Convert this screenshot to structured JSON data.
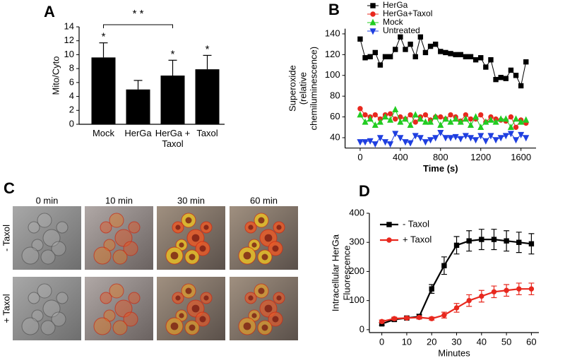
{
  "chart_data": [
    {
      "panel": "A",
      "type": "bar",
      "ylabel": "Mito/Cyto",
      "categories": [
        "Mock",
        "HerGa",
        "HerGa + Taxol",
        "Taxol"
      ],
      "values": [
        9.6,
        5.0,
        7.0,
        7.9
      ],
      "errors": [
        2.1,
        1.3,
        2.2,
        2.0
      ],
      "significance": [
        "*",
        null,
        "*",
        "*"
      ],
      "bracket": {
        "label": "* *",
        "between": [
          0,
          2
        ]
      },
      "color": "#000000",
      "ylim": [
        0,
        14
      ],
      "yticks": [
        0,
        2,
        4,
        6,
        8,
        10,
        12,
        14
      ]
    },
    {
      "panel": "B",
      "type": "line",
      "xlabel": "Time (s)",
      "ylabel": [
        "Superoxide",
        "(relative",
        "chemiluminescence)"
      ],
      "x": [
        0,
        50,
        100,
        150,
        200,
        250,
        300,
        350,
        400,
        450,
        500,
        550,
        600,
        650,
        700,
        750,
        800,
        850,
        900,
        950,
        1000,
        1050,
        1100,
        1150,
        1200,
        1250,
        1300,
        1350,
        1400,
        1450,
        1500,
        1550,
        1600,
        1650
      ],
      "series": [
        {
          "name": "HerGa",
          "color": "#000000",
          "marker": "square",
          "values": [
            135,
            117,
            118,
            122,
            110,
            118,
            118,
            125,
            137,
            125,
            130,
            118,
            137,
            122,
            128,
            130,
            123,
            122,
            121,
            120,
            120,
            118,
            118,
            115,
            117,
            108,
            115,
            96,
            98,
            97,
            105,
            100,
            90,
            113
          ]
        },
        {
          "name": "HerGa+Taxol",
          "color": "#e8281e",
          "marker": "circle",
          "values": [
            68,
            62,
            60,
            62,
            58,
            62,
            63,
            58,
            60,
            58,
            62,
            55,
            60,
            62,
            57,
            60,
            60,
            58,
            62,
            60,
            56,
            62,
            58,
            58,
            62,
            55,
            60,
            58,
            57,
            56,
            60,
            50,
            57,
            54
          ]
        },
        {
          "name": "Mock",
          "color": "#22cc22",
          "marker": "triangle",
          "values": [
            62,
            55,
            58,
            52,
            55,
            60,
            57,
            67,
            55,
            58,
            52,
            62,
            58,
            55,
            55,
            60,
            52,
            58,
            55,
            58,
            55,
            58,
            52,
            60,
            50,
            55,
            57,
            55,
            58,
            58,
            50,
            58,
            55,
            57
          ]
        },
        {
          "name": "Untreated",
          "color": "#1f3fe0",
          "marker": "triangle-down",
          "values": [
            36,
            36,
            37,
            34,
            40,
            36,
            34,
            44,
            40,
            36,
            35,
            42,
            40,
            36,
            38,
            40,
            45,
            40,
            40,
            41,
            39,
            42,
            40,
            38,
            42,
            37,
            42,
            38,
            40,
            42,
            44,
            38,
            43,
            40
          ]
        }
      ],
      "xlim": [
        -150,
        1750
      ],
      "xticks": [
        0,
        400,
        800,
        1200,
        1600
      ],
      "ylim": [
        30,
        145
      ],
      "yticks": [
        40,
        60,
        80,
        100,
        120,
        140
      ]
    },
    {
      "panel": "D",
      "type": "line",
      "xlabel": "Minutes",
      "ylabel": [
        "Intracellular HerGa",
        "Fluorescence"
      ],
      "x": [
        0,
        5,
        10,
        15,
        20,
        25,
        30,
        35,
        40,
        45,
        50,
        55,
        60
      ],
      "series": [
        {
          "name": "- Taxol",
          "color": "#000000",
          "marker": "square",
          "values": [
            20,
            35,
            40,
            45,
            140,
            220,
            290,
            305,
            310,
            310,
            305,
            300,
            295
          ],
          "errors": [
            5,
            5,
            5,
            8,
            15,
            30,
            30,
            35,
            35,
            35,
            35,
            35,
            35
          ]
        },
        {
          "name": "+ Taxol",
          "color": "#e8281e",
          "marker": "circle",
          "values": [
            28,
            38,
            40,
            42,
            38,
            50,
            75,
            100,
            115,
            130,
            135,
            140,
            140
          ],
          "errors": [
            5,
            5,
            5,
            5,
            5,
            10,
            15,
            20,
            20,
            20,
            20,
            20,
            20
          ]
        }
      ],
      "xlim": [
        -5,
        63
      ],
      "xticks": [
        0,
        10,
        20,
        30,
        40,
        50,
        60
      ],
      "ylim": [
        -10,
        400
      ],
      "yticks": [
        0,
        100,
        200,
        300,
        400
      ]
    }
  ],
  "images": {
    "panel": "C",
    "columns": [
      "0 min",
      "10 min",
      "30 min",
      "60 min"
    ],
    "rows": [
      "- Taxol",
      "+ Taxol"
    ]
  }
}
